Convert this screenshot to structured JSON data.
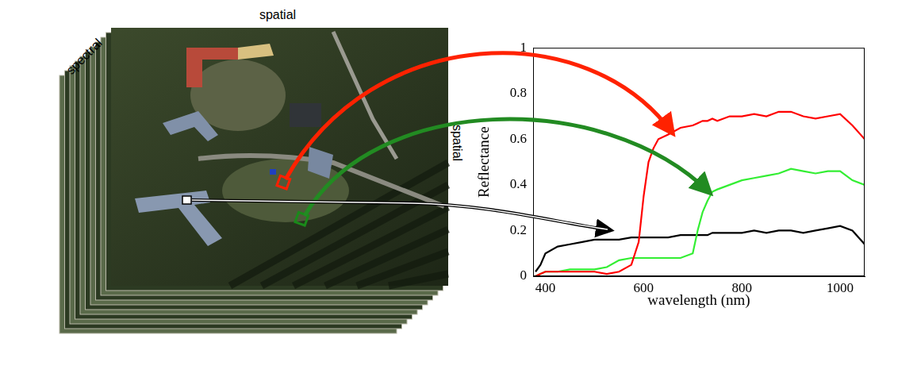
{
  "image": {
    "labels": {
      "top": "spatial",
      "side": "spatial",
      "corner": "spectral"
    }
  },
  "chart_data": {
    "type": "line",
    "x_label": "wavelength (nm)",
    "y_label": "Reflectance",
    "x": [
      380,
      390,
      400,
      425,
      450,
      475,
      500,
      525,
      550,
      575,
      590,
      600,
      610,
      620,
      630,
      650,
      675,
      700,
      710,
      720,
      730,
      740,
      750,
      775,
      800,
      825,
      850,
      875,
      900,
      925,
      950,
      975,
      1000,
      1025,
      1050
    ],
    "series": [
      {
        "color": "#ff0000",
        "values": [
          0,
          0.01,
          0.02,
          0.02,
          0.02,
          0.02,
          0.02,
          0.01,
          0.02,
          0.05,
          0.15,
          0.35,
          0.5,
          0.56,
          0.6,
          0.62,
          0.65,
          0.66,
          0.67,
          0.68,
          0.68,
          0.69,
          0.68,
          0.7,
          0.7,
          0.71,
          0.7,
          0.72,
          0.72,
          0.7,
          0.69,
          0.7,
          0.71,
          0.66,
          0.6
        ]
      },
      {
        "color": "#33ee33",
        "values": [
          0,
          0.01,
          0.02,
          0.02,
          0.03,
          0.03,
          0.03,
          0.04,
          0.07,
          0.08,
          0.08,
          0.08,
          0.08,
          0.08,
          0.08,
          0.08,
          0.08,
          0.1,
          0.2,
          0.28,
          0.33,
          0.37,
          0.38,
          0.4,
          0.42,
          0.43,
          0.44,
          0.45,
          0.47,
          0.46,
          0.45,
          0.46,
          0.46,
          0.42,
          0.4
        ]
      },
      {
        "color": "#000000",
        "values": [
          0.02,
          0.05,
          0.1,
          0.13,
          0.14,
          0.15,
          0.16,
          0.16,
          0.16,
          0.17,
          0.17,
          0.17,
          0.17,
          0.17,
          0.17,
          0.17,
          0.18,
          0.18,
          0.18,
          0.18,
          0.18,
          0.19,
          0.19,
          0.19,
          0.19,
          0.2,
          0.19,
          0.2,
          0.2,
          0.19,
          0.2,
          0.21,
          0.22,
          0.2,
          0.14
        ]
      }
    ],
    "xlim": [
      375,
      1050
    ],
    "xticks": [
      400,
      600,
      800,
      1000
    ],
    "ylim": [
      0,
      1
    ],
    "yticks": [
      0,
      0.2,
      0.4,
      0.6,
      0.8,
      1
    ],
    "grid": false
  }
}
